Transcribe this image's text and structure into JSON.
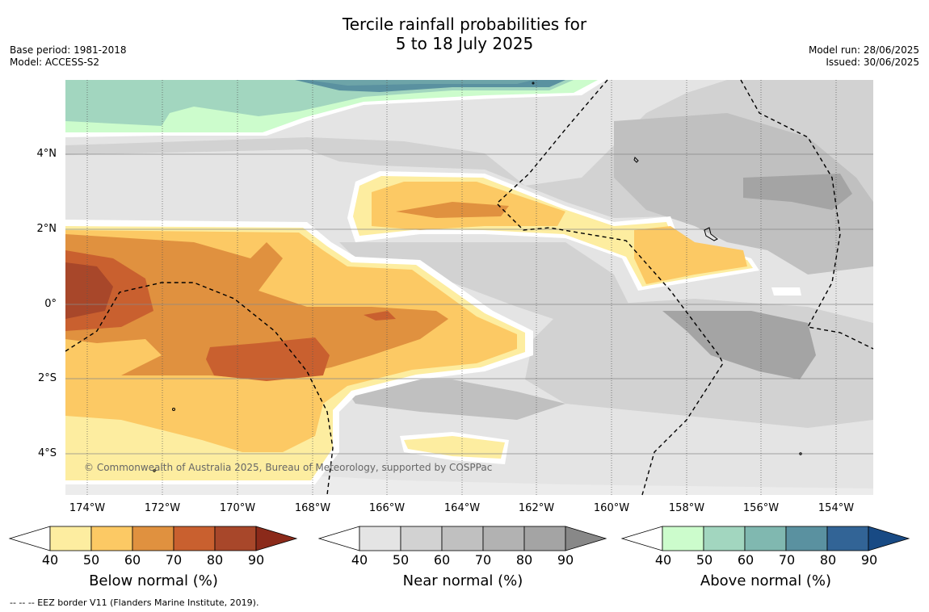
{
  "title": {
    "line1": "Tercile rainfall probabilities for",
    "line2": "5 to 18 July 2025"
  },
  "meta_left": {
    "base_period": "Base period: 1981-2018",
    "model": "Model: ACCESS-S2"
  },
  "meta_right": {
    "model_run": "Model run: 28/06/2025",
    "issued": "Issued: 30/06/2025"
  },
  "lat_labels": [
    "4°N",
    "2°N",
    "0°",
    "2°S",
    "4°S"
  ],
  "lon_labels": [
    "174°W",
    "172°W",
    "170°W",
    "168°W",
    "166°W",
    "164°W",
    "162°W",
    "160°W",
    "158°W",
    "156°W",
    "154°W"
  ],
  "copyright": "© Commonwealth of Australia 2025, Bureau of Meteorology, supported by COSPPac",
  "colorbars": [
    {
      "label": "Below normal (%)",
      "ticks": [
        "40",
        "50",
        "60",
        "70",
        "80",
        "90"
      ],
      "colors": [
        "#ffffff",
        "#fdeda0",
        "#fcc964",
        "#e0913f",
        "#c9602f",
        "#a8472a",
        "#8b2a1a"
      ]
    },
    {
      "label": "Near normal (%)",
      "ticks": [
        "40",
        "50",
        "60",
        "70",
        "80",
        "90"
      ],
      "colors": [
        "#ffffff",
        "#e4e4e4",
        "#d2d2d2",
        "#c0c0c0",
        "#b2b2b2",
        "#a4a4a4",
        "#888888"
      ]
    },
    {
      "label": "Above normal (%)",
      "ticks": [
        "40",
        "50",
        "60",
        "70",
        "80",
        "90"
      ],
      "colors": [
        "#ffffff",
        "#ccfccc",
        "#a2d6bf",
        "#80b8b0",
        "#5a91a0",
        "#326496",
        "#184a84"
      ]
    }
  ],
  "footer": "--  --  -- EEZ border V11 (Flanders Marine Institute, 2019)."
}
